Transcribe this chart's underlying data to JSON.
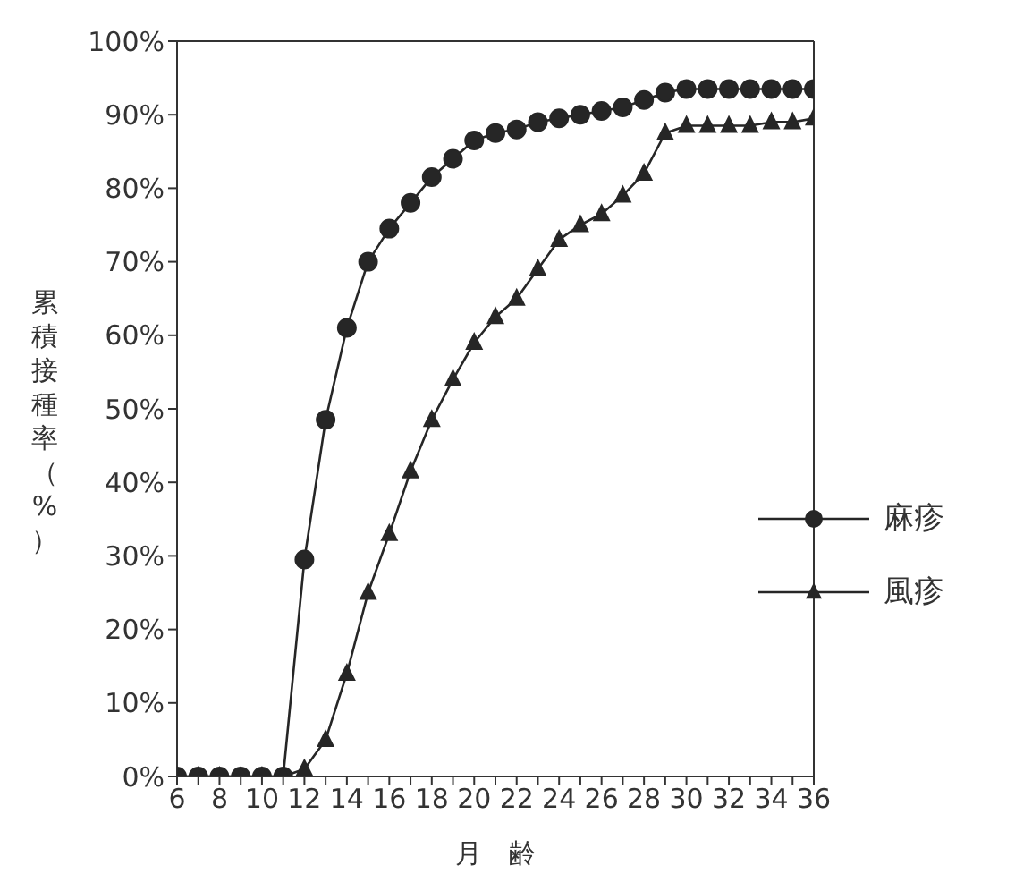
{
  "chart_data": {
    "type": "line",
    "xlabel": "月　齢",
    "ylabel": "累積接種率（%）",
    "x": [
      6,
      7,
      8,
      9,
      10,
      11,
      12,
      13,
      14,
      15,
      16,
      17,
      18,
      19,
      20,
      21,
      22,
      23,
      24,
      25,
      26,
      27,
      28,
      29,
      30,
      31,
      32,
      33,
      34,
      35,
      36
    ],
    "series": [
      {
        "name": "麻疹",
        "color": "#262626",
        "marker": "circle",
        "values": [
          0,
          0,
          0,
          0,
          0,
          0,
          29.5,
          48.5,
          61,
          70,
          74.5,
          78,
          81.5,
          84,
          86.5,
          87.5,
          88,
          89,
          89.5,
          90,
          90.5,
          91,
          92,
          93,
          93.5,
          93.5,
          93.5,
          93.5,
          93.5,
          93.5,
          93.5
        ]
      },
      {
        "name": "風疹",
        "color": "#262626",
        "marker": "triangle",
        "values": [
          0,
          0,
          0,
          0,
          0,
          0,
          1,
          5,
          14,
          25,
          33,
          41.5,
          48.5,
          54,
          59,
          62.5,
          65,
          69,
          73,
          75,
          76.5,
          79,
          82,
          87.5,
          88.5,
          88.5,
          88.5,
          88.5,
          89,
          89,
          89.5
        ]
      }
    ],
    "xlim": [
      6,
      36
    ],
    "xticks": [
      6,
      {
        "value": 7,
        "label": null
      },
      8,
      {
        "value": 9,
        "label": null
      },
      10,
      {
        "value": 11,
        "label": null
      },
      12,
      {
        "value": 13,
        "label": null
      },
      14,
      {
        "value": 15,
        "label": null
      },
      16,
      {
        "value": 17,
        "label": null
      },
      18,
      {
        "value": 19,
        "label": null
      },
      20,
      {
        "value": 21,
        "label": null
      },
      22,
      {
        "value": 23,
        "label": null
      },
      24,
      {
        "value": 25,
        "label": null
      },
      26,
      {
        "value": 27,
        "label": null
      },
      28,
      {
        "value": 29,
        "label": null
      },
      30,
      {
        "value": 31,
        "label": null
      },
      32,
      {
        "value": 33,
        "label": null
      },
      34,
      {
        "value": 35,
        "label": null
      },
      36
    ],
    "ylim": [
      0,
      100
    ],
    "yticks": [
      {
        "value": 0,
        "label": "0%"
      },
      {
        "value": 10,
        "label": "10%"
      },
      {
        "value": 20,
        "label": "20%"
      },
      {
        "value": 30,
        "label": "30%"
      },
      {
        "value": 40,
        "label": "40%"
      },
      {
        "value": 50,
        "label": "50%"
      },
      {
        "value": 60,
        "label": "60%"
      },
      {
        "value": 70,
        "label": "70%"
      },
      {
        "value": 80,
        "label": "80%"
      },
      {
        "value": 90,
        "label": "90%"
      },
      {
        "value": 100,
        "label": "100%"
      }
    ],
    "grid": false,
    "legend": "right",
    "line_style": "solid"
  }
}
